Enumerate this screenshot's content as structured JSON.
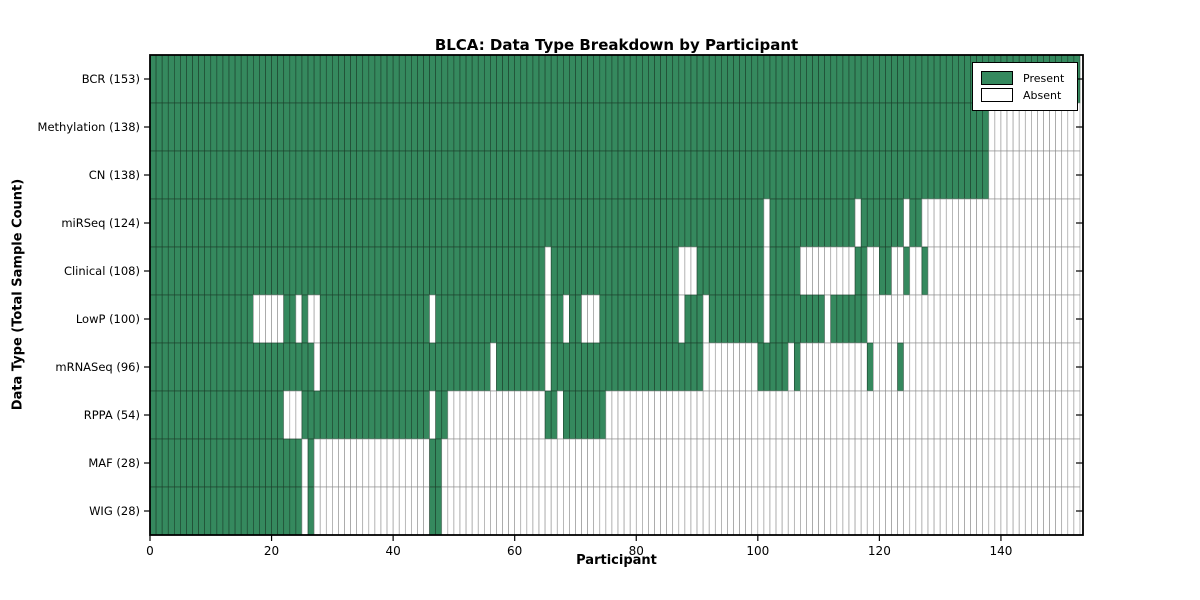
{
  "title": "BLCA: Data Type Breakdown by Participant",
  "x_axis_label": "Participant",
  "y_axis_label": "Data Type (Total Sample Count)",
  "legend": {
    "present_label": "Present",
    "absent_label": "Absent"
  },
  "colors": {
    "present_fill": "#35895e",
    "absent_fill": "#ffffff",
    "present_cell_border": "#1b3f2b",
    "absent_cell_border": "#8c8c8c",
    "frame": "#000000",
    "text": "#000000"
  },
  "x_ticks": [
    0,
    20,
    40,
    60,
    80,
    100,
    120,
    140
  ],
  "chart_data": {
    "type": "heatmap",
    "title": "BLCA: Data Type Breakdown by Participant",
    "xlabel": "Participant",
    "ylabel": "Data Type (Total Sample Count)",
    "legend_entries": [
      "Present",
      "Absent"
    ],
    "legend_position": "upper right",
    "grid": false,
    "x_range": [
      0,
      153.5
    ],
    "n_participants": 153,
    "x_tick_values": [
      0,
      20,
      40,
      60,
      80,
      100,
      120,
      140
    ],
    "cell_states": [
      "present",
      "absent"
    ],
    "rows": [
      {
        "label": "BCR (153)",
        "data_type": "BCR",
        "total": 153,
        "present_runs": [
          [
            0,
            152
          ]
        ]
      },
      {
        "label": "Methylation (138)",
        "data_type": "Methylation",
        "total": 138,
        "present_runs": [
          [
            0,
            137
          ]
        ]
      },
      {
        "label": "CN (138)",
        "data_type": "CN",
        "total": 138,
        "present_runs": [
          [
            0,
            137
          ]
        ]
      },
      {
        "label": "miRSeq (124)",
        "data_type": "miRSeq",
        "total": 124,
        "present_runs": [
          [
            0,
            100
          ],
          [
            102,
            115
          ],
          [
            117,
            123
          ],
          [
            125,
            126
          ]
        ]
      },
      {
        "label": "Clinical (108)",
        "data_type": "Clinical",
        "total": 108,
        "present_runs": [
          [
            0,
            64
          ],
          [
            66,
            86
          ],
          [
            90,
            100
          ],
          [
            102,
            106
          ],
          [
            116,
            117
          ],
          [
            120,
            121
          ],
          [
            124,
            124
          ],
          [
            127,
            127
          ]
        ]
      },
      {
        "label": "LowP (100)",
        "data_type": "LowP",
        "total": 100,
        "present_runs": [
          [
            0,
            16
          ],
          [
            22,
            23
          ],
          [
            25,
            25
          ],
          [
            28,
            45
          ],
          [
            47,
            64
          ],
          [
            66,
            67
          ],
          [
            69,
            70
          ],
          [
            74,
            86
          ],
          [
            88,
            90
          ],
          [
            92,
            100
          ],
          [
            102,
            110
          ],
          [
            112,
            117
          ]
        ]
      },
      {
        "label": "mRNASeq (96)",
        "data_type": "mRNASeq",
        "total": 96,
        "present_runs": [
          [
            0,
            26
          ],
          [
            28,
            55
          ],
          [
            57,
            64
          ],
          [
            66,
            90
          ],
          [
            100,
            104
          ],
          [
            106,
            106
          ],
          [
            118,
            118
          ],
          [
            123,
            123
          ]
        ]
      },
      {
        "label": "RPPA (54)",
        "data_type": "RPPA",
        "total": 54,
        "present_runs": [
          [
            0,
            21
          ],
          [
            25,
            45
          ],
          [
            47,
            48
          ],
          [
            65,
            66
          ],
          [
            68,
            74
          ]
        ]
      },
      {
        "label": "MAF (28)",
        "data_type": "MAF",
        "total": 28,
        "present_runs": [
          [
            0,
            24
          ],
          [
            26,
            26
          ],
          [
            46,
            47
          ]
        ]
      },
      {
        "label": "WIG (28)",
        "data_type": "WIG",
        "total": 28,
        "present_runs": [
          [
            0,
            24
          ],
          [
            26,
            26
          ],
          [
            46,
            47
          ]
        ]
      }
    ]
  }
}
